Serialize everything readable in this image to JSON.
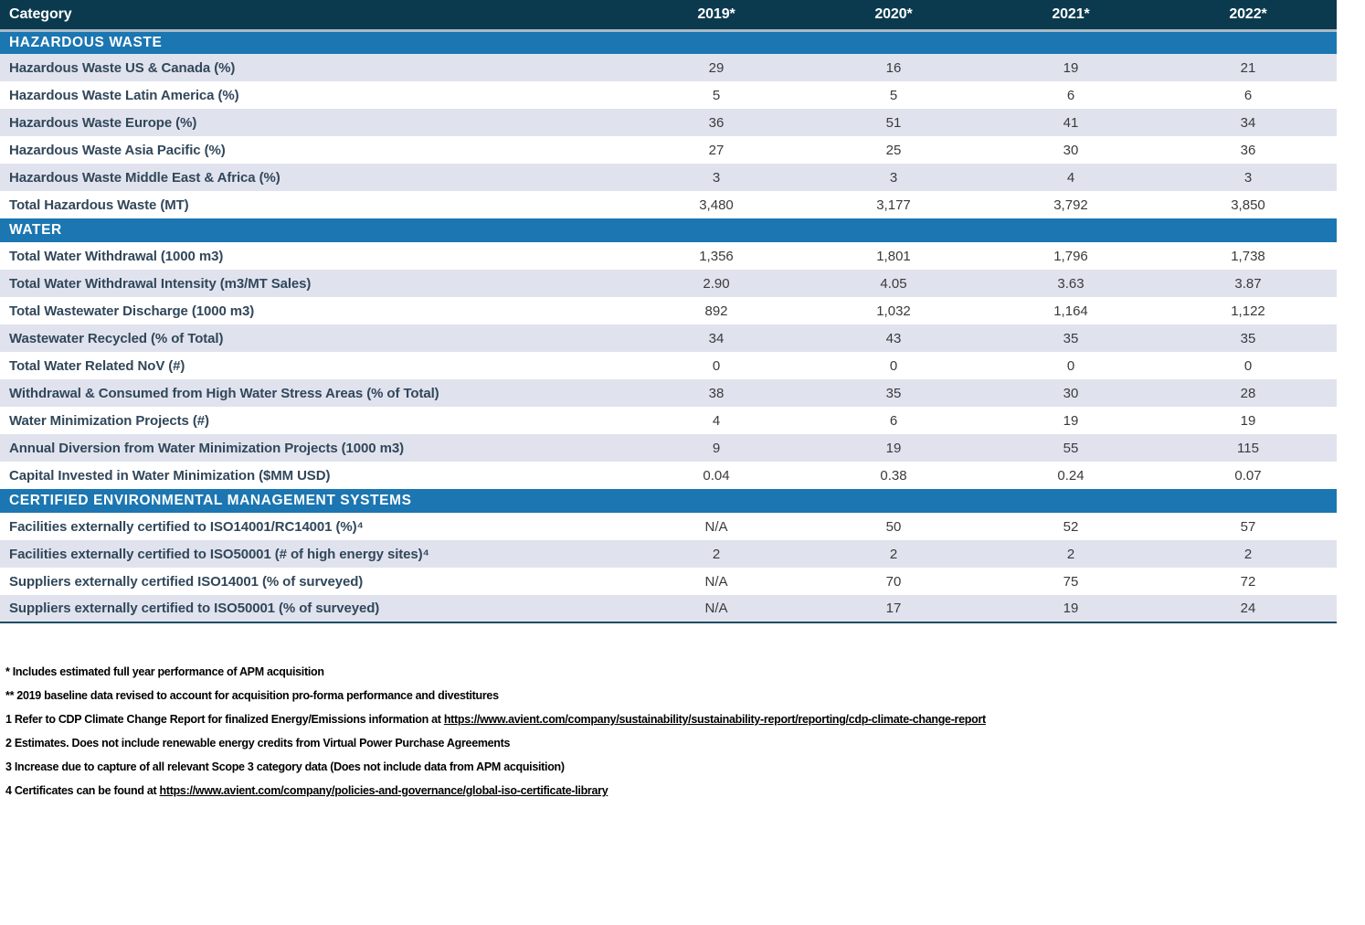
{
  "colors": {
    "header_bg": "#0B3A4F",
    "section_bg": "#1B76B1",
    "row_shaded_bg": "#E0E3EE",
    "row_label_color": "#31475A",
    "value_color": "#3A3A3A",
    "header_border": "#A9BAC6",
    "table_bottom_border": "#1E4D63",
    "footnote_color": "#000000"
  },
  "table": {
    "header": {
      "category_label": "Category",
      "years": [
        "2019*",
        "2020*",
        "2021*",
        "2022*"
      ]
    },
    "sections": [
      {
        "title": "HAZARDOUS WASTE",
        "rows": [
          {
            "label": "Hazardous Waste US & Canada (%)",
            "values": [
              "29",
              "16",
              "19",
              "21"
            ]
          },
          {
            "label": "Hazardous Waste Latin America (%)",
            "values": [
              "5",
              "5",
              "6",
              "6"
            ]
          },
          {
            "label": "Hazardous Waste Europe (%)",
            "values": [
              "36",
              "51",
              "41",
              "34"
            ]
          },
          {
            "label": "Hazardous Waste Asia Pacific (%)",
            "values": [
              "27",
              "25",
              "30",
              "36"
            ]
          },
          {
            "label": "Hazardous Waste Middle East & Africa (%)",
            "values": [
              "3",
              "3",
              "4",
              "3"
            ]
          },
          {
            "label": "Total Hazardous Waste (MT)",
            "values": [
              "3,480",
              "3,177",
              "3,792",
              "3,850"
            ]
          }
        ]
      },
      {
        "title": "WATER",
        "rows": [
          {
            "label": "Total Water Withdrawal (1000 m3)",
            "values": [
              "1,356",
              "1,801",
              "1,796",
              "1,738"
            ]
          },
          {
            "label": "Total Water Withdrawal Intensity (m3/MT Sales)",
            "values": [
              "2.90",
              "4.05",
              "3.63",
              "3.87"
            ]
          },
          {
            "label": "Total Wastewater Discharge (1000 m3)",
            "values": [
              "892",
              "1,032",
              "1,164",
              "1,122"
            ]
          },
          {
            "label": "Wastewater Recycled (% of Total)",
            "values": [
              "34",
              "43",
              "35",
              "35"
            ]
          },
          {
            "label": "Total Water Related NoV (#)",
            "values": [
              "0",
              "0",
              "0",
              "0"
            ]
          },
          {
            "label": "Withdrawal & Consumed from High Water Stress Areas (% of Total)",
            "values": [
              "38",
              "35",
              "30",
              "28"
            ]
          },
          {
            "label": "Water Minimization Projects (#)",
            "values": [
              "4",
              "6",
              "19",
              "19"
            ]
          },
          {
            "label": "Annual Diversion from Water Minimization Projects (1000 m3)",
            "values": [
              "9",
              "19",
              "55",
              "115"
            ]
          },
          {
            "label": "Capital Invested in Water Minimization ($MM USD)",
            "values": [
              "0.04",
              "0.38",
              "0.24",
              "0.07"
            ]
          }
        ]
      },
      {
        "title": "CERTIFIED ENVIRONMENTAL MANAGEMENT SYSTEMS",
        "rows": [
          {
            "label": "Facilities externally certified to ISO14001/RC14001 (%)⁴",
            "values": [
              "N/A",
              "50",
              "52",
              "57"
            ]
          },
          {
            "label": "Facilities externally certified to ISO50001 (# of high energy sites)⁴",
            "values": [
              "2",
              "2",
              "2",
              "2"
            ]
          },
          {
            "label": "Suppliers externally certified ISO14001 (% of surveyed)",
            "values": [
              "N/A",
              "70",
              "75",
              "72"
            ]
          },
          {
            "label": "Suppliers externally certified to ISO50001 (% of surveyed)",
            "values": [
              "N/A",
              "17",
              "19",
              "24"
            ]
          }
        ]
      }
    ]
  },
  "footnotes": [
    [
      {
        "text": "* Includes estimated full year performance of APM acquisition"
      }
    ],
    [
      {
        "text": "** 2019 baseline data revised to account for acquisition pro-forma performance and divestitures"
      }
    ],
    [
      {
        "text": "1 Refer to CDP Climate Change Report for finalized Energy/Emissions information at "
      },
      {
        "text": "https://www.avient.com/company/sustainability/sustainability-report/reporting/cdp-climate-change-report",
        "link": true
      }
    ],
    [
      {
        "text": "2 Estimates. Does not include renewable energy credits from Virtual Power Purchase Agreements"
      }
    ],
    [
      {
        "text": "3 Increase due to capture of all relevant Scope 3 category data (Does not include data from APM acquisition)"
      }
    ],
    [
      {
        "text": "4 Certificates can be found at "
      },
      {
        "text": "https://www.avient.com/company/policies-and-governance/global-iso-certificate-library",
        "link": true
      }
    ]
  ]
}
